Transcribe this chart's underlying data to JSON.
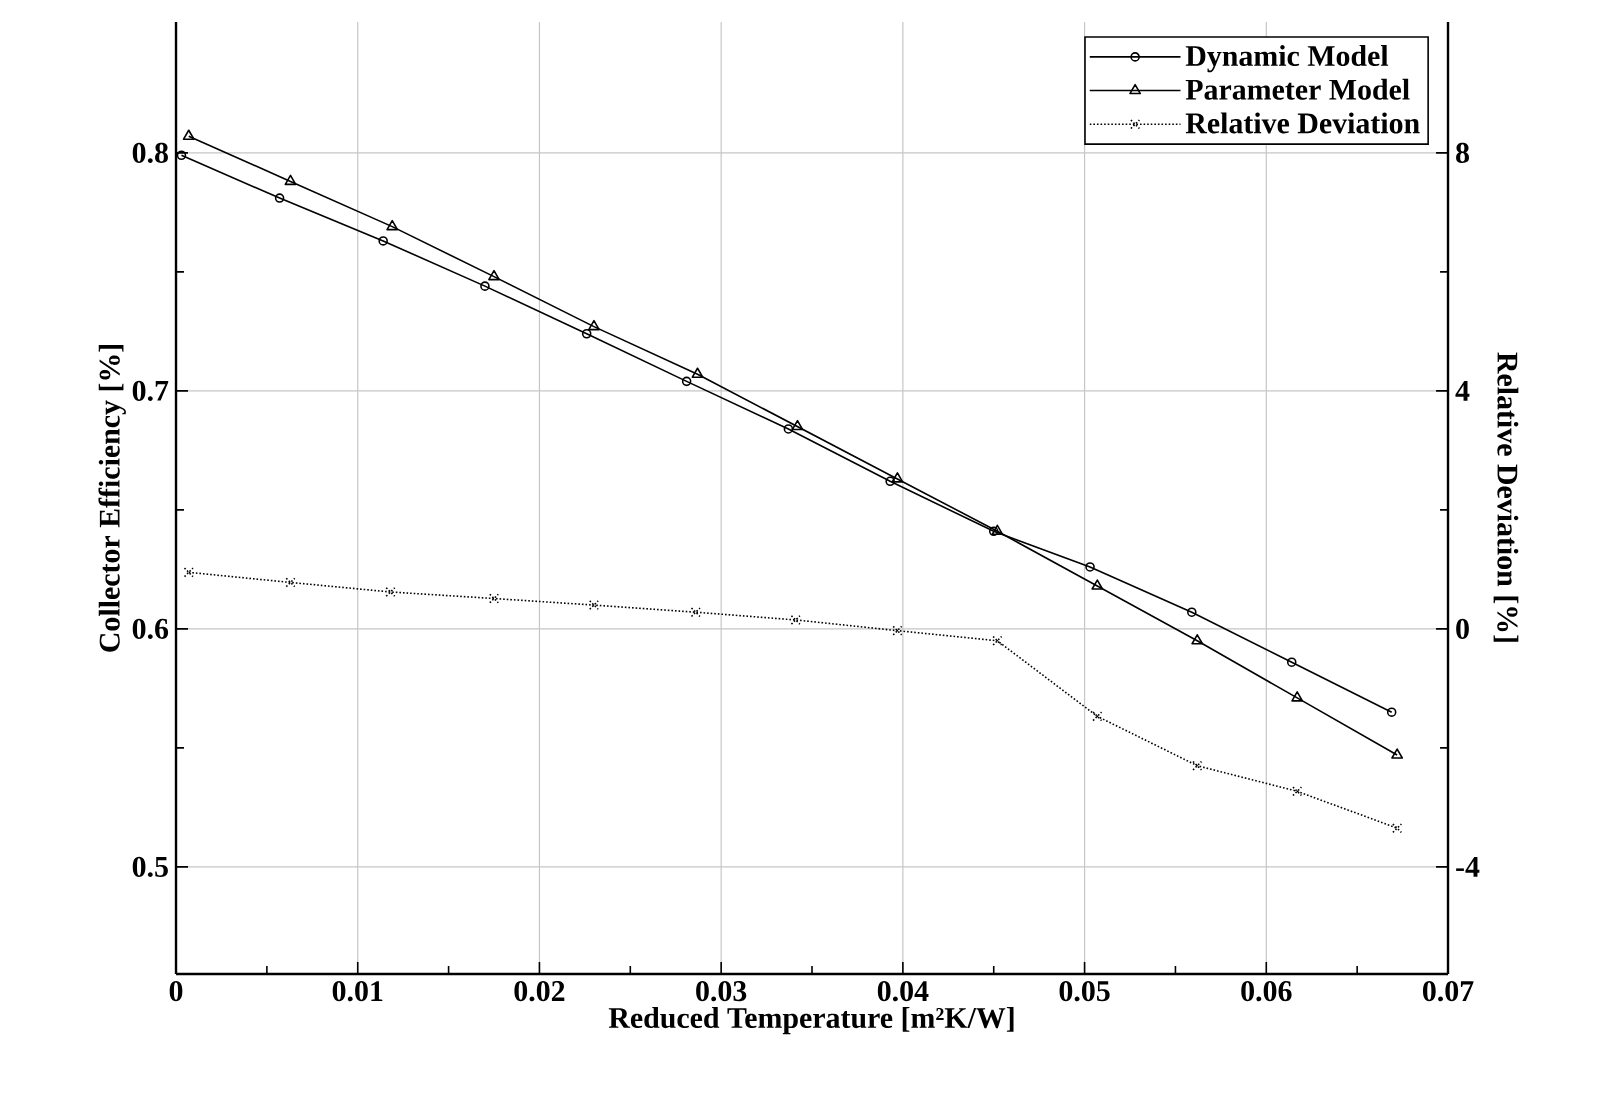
{
  "chart_data": {
    "type": "line",
    "xlabel": "Reduced Temperature [m²K/W]",
    "ylabel": "Collector Efficiency [%]",
    "y2label": "Relative Deviation [%]",
    "xlim": [
      0,
      0.07
    ],
    "xticks": [
      0,
      0.01,
      0.02,
      0.03,
      0.04,
      0.05,
      0.06,
      0.07
    ],
    "ylim": [
      0.455,
      0.855
    ],
    "yticks": [
      0.5,
      0.6,
      0.7,
      0.8
    ],
    "y2lim": [
      -5.8,
      10.2
    ],
    "y2ticks": [
      -4,
      0,
      4,
      8
    ],
    "grid": true,
    "legend": "top right",
    "series": [
      {
        "name": "Dynamic Model",
        "color": "#000000",
        "marker": "circle",
        "line_style": "solid",
        "x": [
          0.0003,
          0.0057,
          0.0114,
          0.017,
          0.0226,
          0.0281,
          0.0337,
          0.0393,
          0.045,
          0.0503,
          0.0559,
          0.0614,
          0.0669
        ],
        "values": [
          0.799,
          0.781,
          0.763,
          0.744,
          0.724,
          0.704,
          0.684,
          0.662,
          0.641,
          0.626,
          0.607,
          0.586,
          0.565
        ]
      },
      {
        "name": "Parameter Model",
        "color": "#000000",
        "marker": "triangle",
        "line_style": "solid",
        "x": [
          0.0007,
          0.0063,
          0.0119,
          0.0175,
          0.023,
          0.0287,
          0.0342,
          0.0397,
          0.0452,
          0.0507,
          0.0562,
          0.0617,
          0.0672
        ],
        "values": [
          0.807,
          0.788,
          0.769,
          0.748,
          0.727,
          0.707,
          0.685,
          0.663,
          0.641,
          0.618,
          0.595,
          0.571,
          0.547
        ]
      },
      {
        "name": "Relative Deviation",
        "color": "#000000",
        "marker": "cross",
        "line_style": "dotted",
        "axis": "y2",
        "x": [
          0.0007,
          0.0063,
          0.0118,
          0.0175,
          0.023,
          0.0286,
          0.0341,
          0.0397,
          0.0452,
          0.0507,
          0.0562,
          0.0617,
          0.0672
        ],
        "values": [
          0.95,
          0.78,
          0.62,
          0.51,
          0.4,
          0.28,
          0.15,
          -0.03,
          -0.2,
          -1.47,
          -2.3,
          -2.73,
          -3.35
        ]
      }
    ]
  }
}
